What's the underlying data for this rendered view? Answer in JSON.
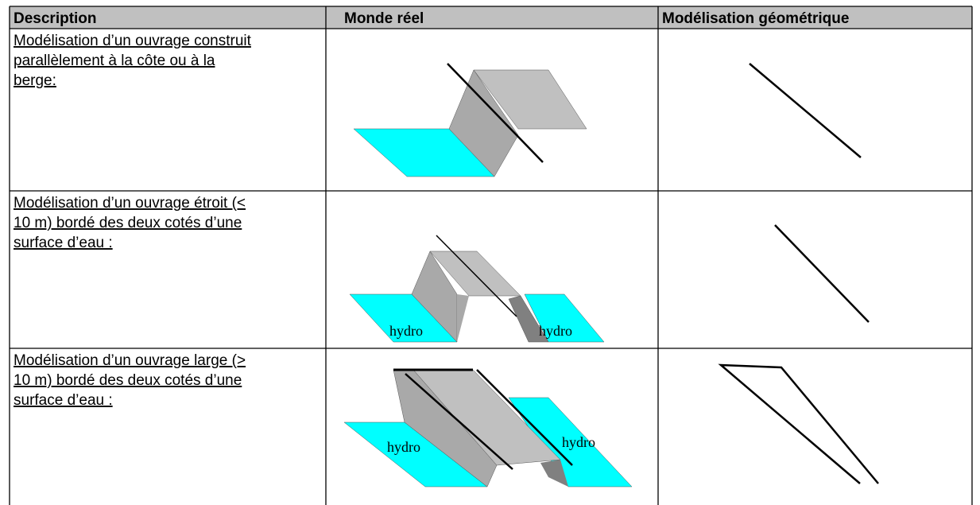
{
  "table": {
    "header": [
      "Description",
      "Monde réel",
      "Modélisation géométrique"
    ],
    "rows": [
      {
        "description": [
          "Modélisation d’un ouvrage construit",
          "parallèlement à la côte ou à la",
          "berge:"
        ]
      },
      {
        "description": [
          "Modélisation d’un ouvrage étroit (<",
          "10 m) bordé des deux cotés d’une",
          "surface d’eau :"
        ],
        "labels": [
          "hydro",
          "hydro"
        ]
      },
      {
        "description": [
          "Modélisation d’un ouvrage large (>",
          "10 m) bordé des deux cotés d’une",
          "surface d’eau :"
        ],
        "labels": [
          "hydro",
          "hydro"
        ]
      }
    ]
  }
}
